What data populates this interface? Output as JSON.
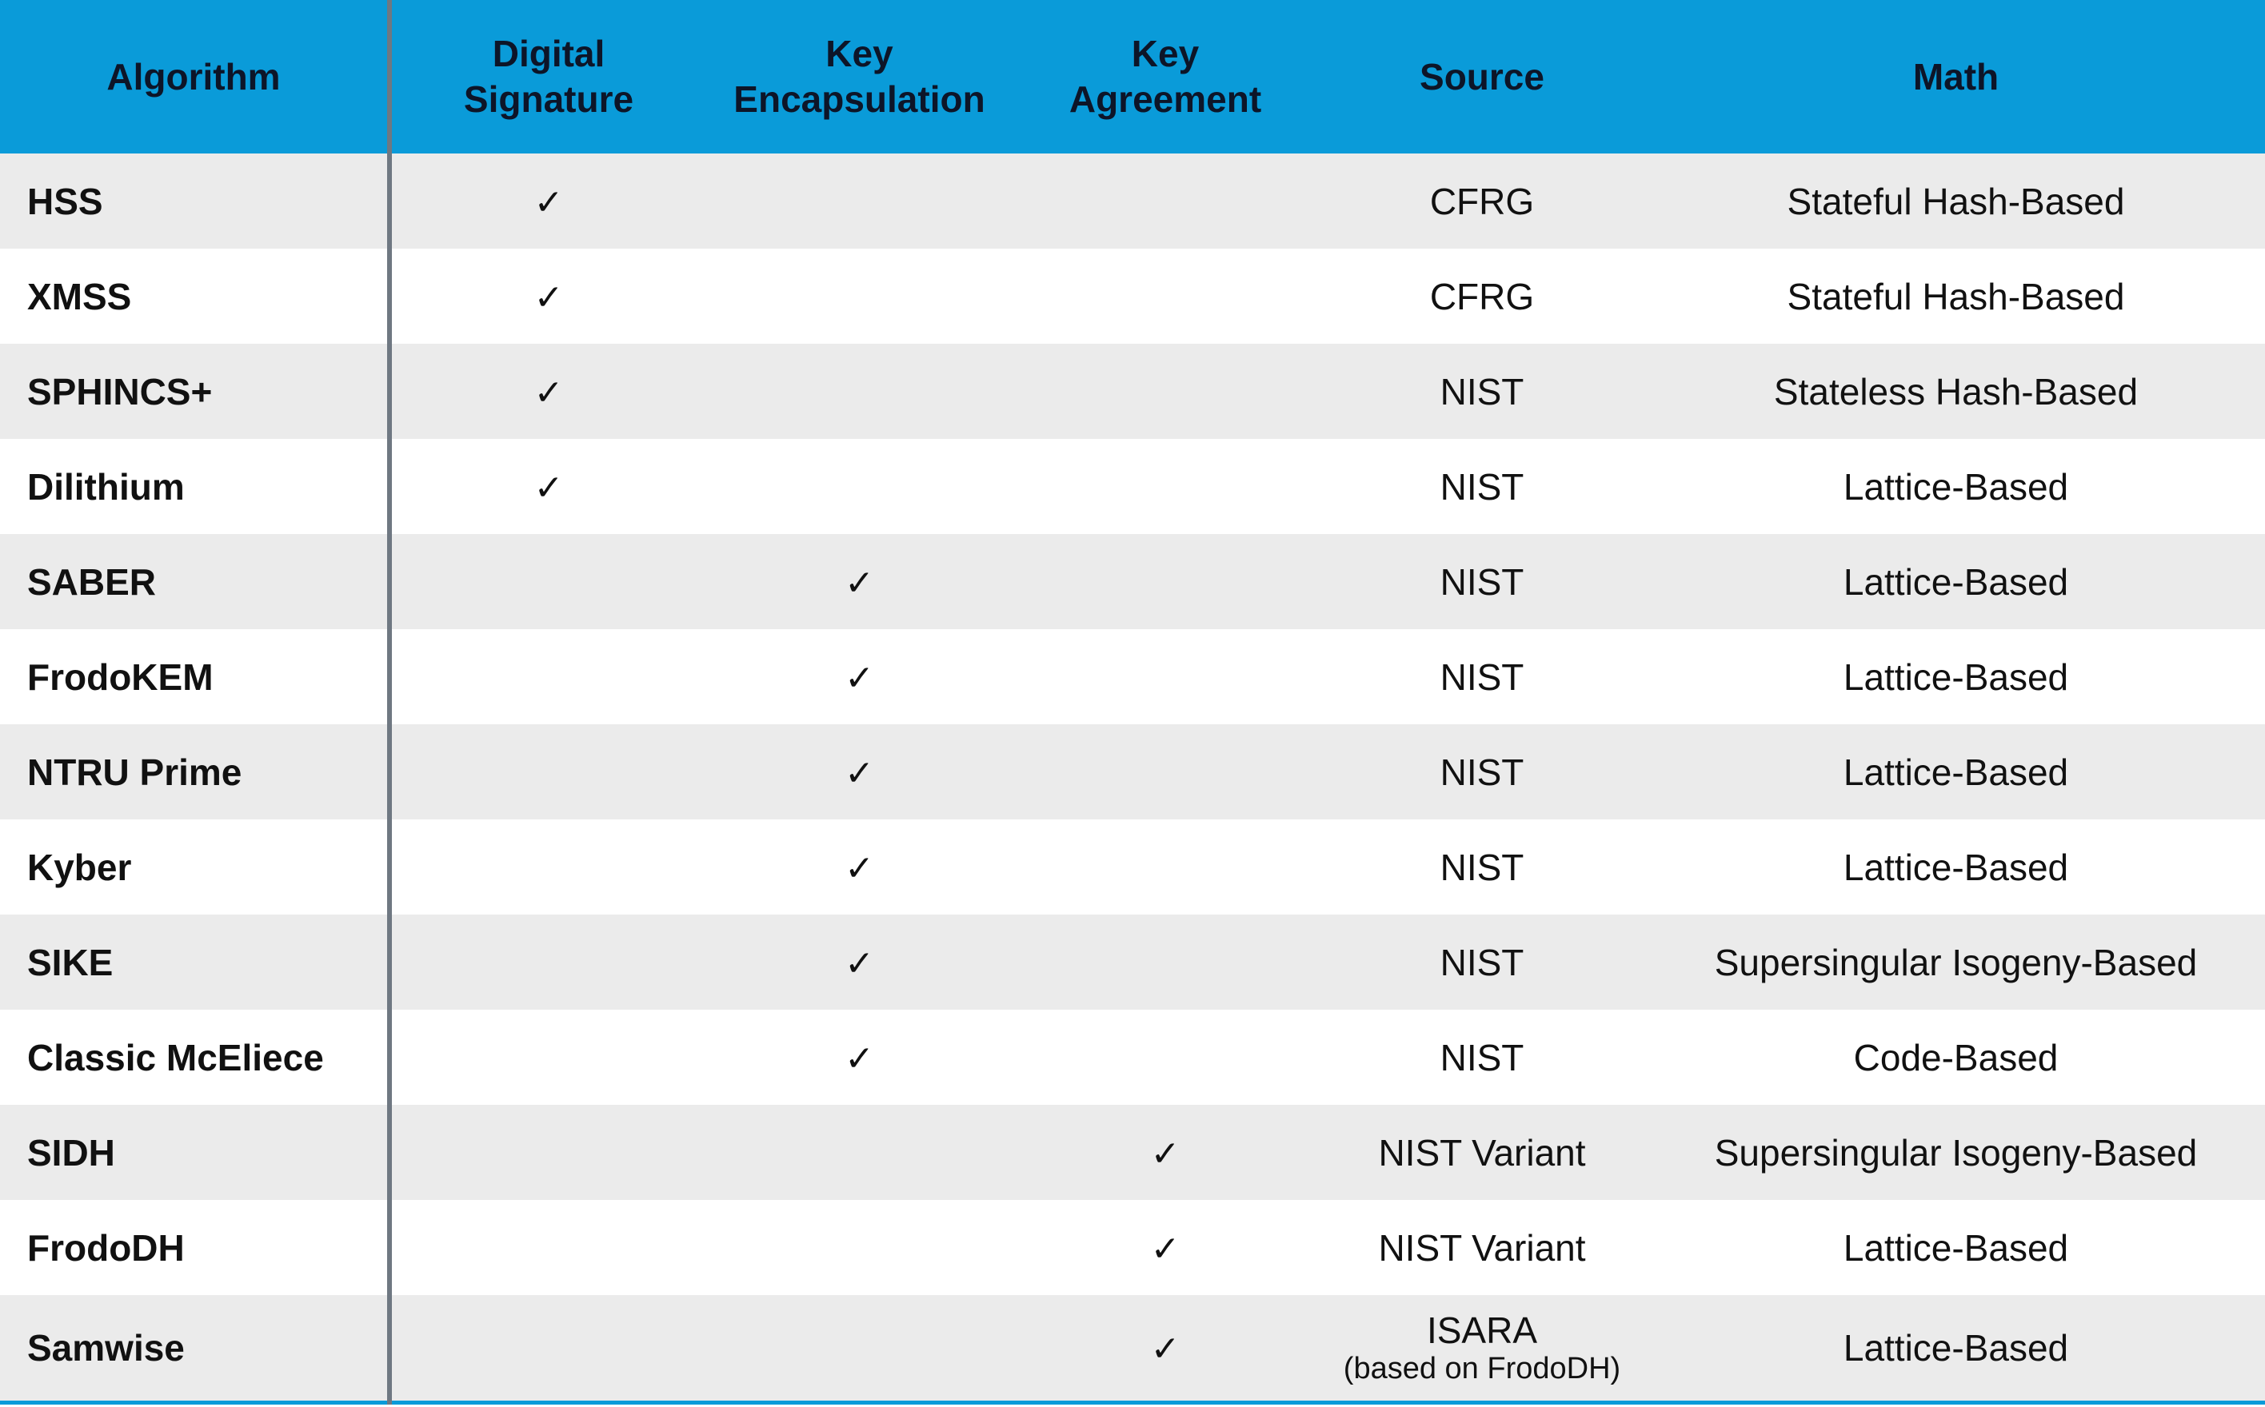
{
  "headers": {
    "algorithm": "Algorithm",
    "digital_signature": [
      "Digital",
      "Signature"
    ],
    "key_encapsulation": [
      "Key",
      "Encapsulation"
    ],
    "key_agreement": [
      "Key",
      "Agreement"
    ],
    "source": "Source",
    "math": "Math"
  },
  "check_mark": "✓",
  "rows": [
    {
      "algorithm": "HSS",
      "capability": "digital_signature",
      "source": "CFRG",
      "math": "Stateful Hash-Based"
    },
    {
      "algorithm": "XMSS",
      "capability": "digital_signature",
      "source": "CFRG",
      "math": "Stateful Hash-Based"
    },
    {
      "algorithm": "SPHINCS+",
      "capability": "digital_signature",
      "source": "NIST",
      "math": "Stateless Hash-Based"
    },
    {
      "algorithm": "Dilithium",
      "capability": "digital_signature",
      "source": "NIST",
      "math": "Lattice-Based"
    },
    {
      "algorithm": "SABER",
      "capability": "key_encapsulation",
      "source": "NIST",
      "math": "Lattice-Based"
    },
    {
      "algorithm": "FrodoKEM",
      "capability": "key_encapsulation",
      "source": "NIST",
      "math": "Lattice-Based"
    },
    {
      "algorithm": "NTRU Prime",
      "capability": "key_encapsulation",
      "source": "NIST",
      "math": "Lattice-Based"
    },
    {
      "algorithm": "Kyber",
      "capability": "key_encapsulation",
      "source": "NIST",
      "math": "Lattice-Based"
    },
    {
      "algorithm": "SIKE",
      "capability": "key_encapsulation",
      "source": "NIST",
      "math": "Supersingular Isogeny-Based"
    },
    {
      "algorithm": "Classic McEliece",
      "capability": "key_encapsulation",
      "source": "NIST",
      "math": "Code-Based"
    },
    {
      "algorithm": "SIDH",
      "capability": "key_agreement",
      "source": "NIST Variant",
      "math": "Supersingular Isogeny-Based"
    },
    {
      "algorithm": "FrodoDH",
      "capability": "key_agreement",
      "source": "NIST Variant",
      "math": "Lattice-Based"
    },
    {
      "algorithm": "Samwise",
      "capability": "key_agreement",
      "source": "ISARA",
      "source_note": "(based on FrodoDH)",
      "math": "Lattice-Based"
    }
  ],
  "colors": {
    "header_bg": "#0a9bd9",
    "header_text": "#0d1528",
    "row_alt_bg": "#ebebeb",
    "row_bg": "#ffffff",
    "divider": "#6f7882"
  }
}
